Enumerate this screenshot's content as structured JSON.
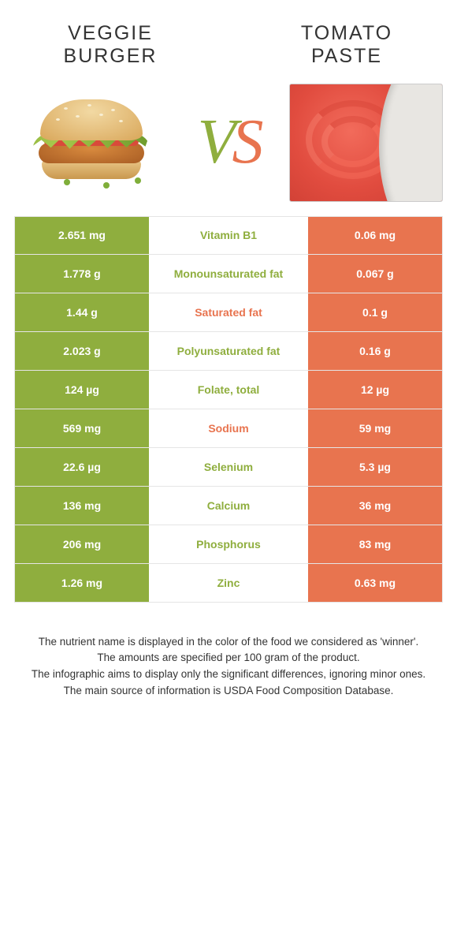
{
  "header": {
    "left_title": "VEGGIE BURGER",
    "right_title": "TOMATO PASTE",
    "vs_v": "V",
    "vs_s": "S"
  },
  "colors": {
    "green": "#8fae3e",
    "orange": "#e8744f",
    "row_border": "#e5e5e5",
    "text": "#333333"
  },
  "rows": [
    {
      "left": "2.651 mg",
      "label": "Vitamin B1",
      "right": "0.06 mg",
      "winner": "green"
    },
    {
      "left": "1.778 g",
      "label": "Monounsaturated fat",
      "right": "0.067 g",
      "winner": "green"
    },
    {
      "left": "1.44 g",
      "label": "Saturated fat",
      "right": "0.1 g",
      "winner": "orange"
    },
    {
      "left": "2.023 g",
      "label": "Polyunsaturated fat",
      "right": "0.16 g",
      "winner": "green"
    },
    {
      "left": "124 µg",
      "label": "Folate, total",
      "right": "12 µg",
      "winner": "green"
    },
    {
      "left": "569 mg",
      "label": "Sodium",
      "right": "59 mg",
      "winner": "orange"
    },
    {
      "left": "22.6 µg",
      "label": "Selenium",
      "right": "5.3 µg",
      "winner": "green"
    },
    {
      "left": "136 mg",
      "label": "Calcium",
      "right": "36 mg",
      "winner": "green"
    },
    {
      "left": "206 mg",
      "label": "Phosphorus",
      "right": "83 mg",
      "winner": "green"
    },
    {
      "left": "1.26 mg",
      "label": "Zinc",
      "right": "0.63 mg",
      "winner": "green"
    }
  ],
  "footer": {
    "line1": "The nutrient name is displayed in the color of the food we considered as 'winner'.",
    "line2": "The amounts are specified per 100 gram of the product.",
    "line3": "The infographic aims to display only the significant differences, ignoring minor ones.",
    "line4": "The main source of information is USDA Food Composition Database."
  }
}
